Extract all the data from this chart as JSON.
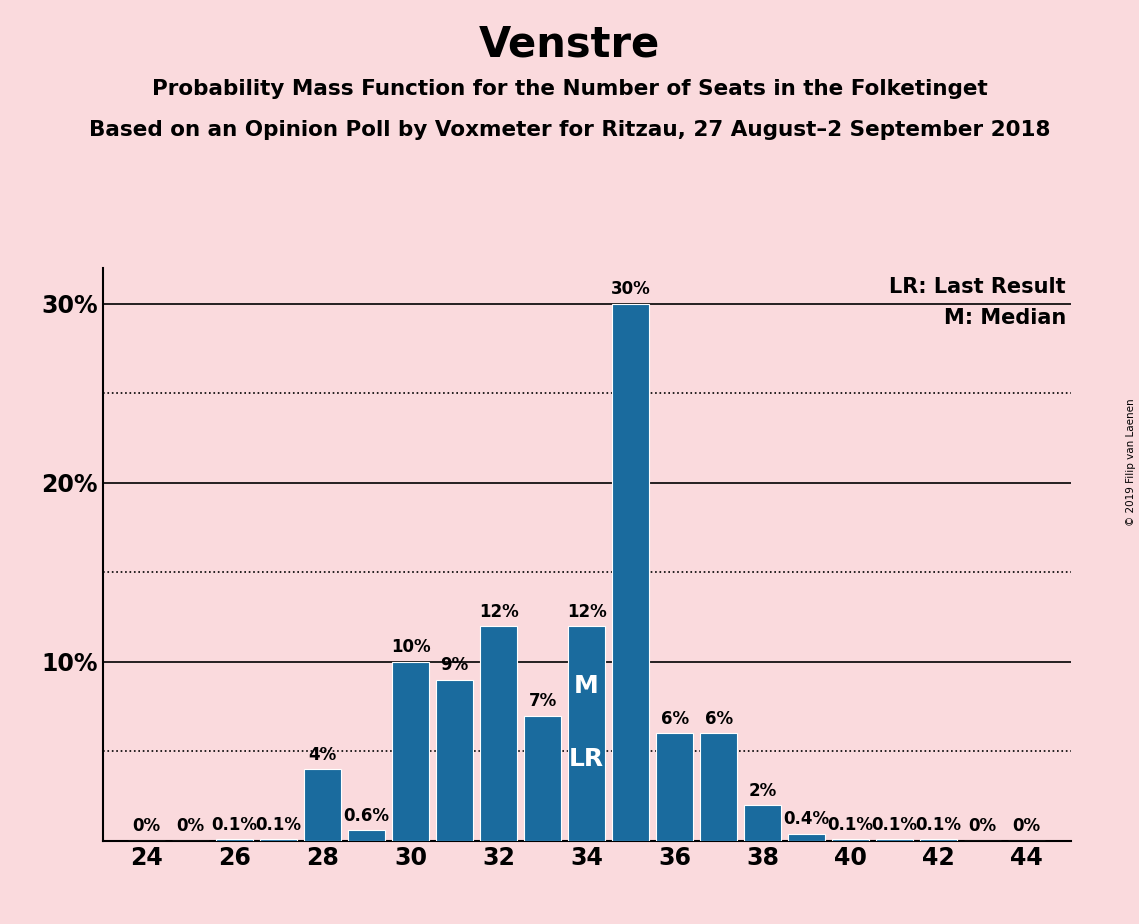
{
  "title": "Venstre",
  "subtitle1": "Probability Mass Function for the Number of Seats in the Folketinget",
  "subtitle2": "Based on an Opinion Poll by Voxmeter for Ritzau, 27 August–2 September 2018",
  "copyright": "© 2019 Filip van Laenen",
  "legend_lr": "LR: Last Result",
  "legend_m": "M: Median",
  "seats": [
    24,
    25,
    26,
    27,
    28,
    29,
    30,
    31,
    32,
    33,
    34,
    35,
    36,
    37,
    38,
    39,
    40,
    41,
    42,
    43,
    44
  ],
  "probabilities": [
    0.0,
    0.0,
    0.1,
    0.1,
    4.0,
    0.6,
    10.0,
    9.0,
    12.0,
    7.0,
    12.0,
    30.0,
    6.0,
    6.0,
    2.0,
    0.4,
    0.1,
    0.1,
    0.1,
    0.0,
    0.0
  ],
  "bar_color": "#1a6b9e",
  "bg_color": "#fadadd",
  "median_seat": 34,
  "lr_seat": 34,
  "xlim": [
    23,
    45
  ],
  "ylim": [
    0,
    32
  ],
  "xticks": [
    24,
    26,
    28,
    30,
    32,
    34,
    36,
    38,
    40,
    42,
    44
  ],
  "solid_yticks": [
    10,
    20,
    30
  ],
  "dotted_yticks": [
    5,
    15,
    25
  ],
  "bar_width": 0.85,
  "label_fontsize": 12,
  "title_fontsize": 30,
  "subtitle_fontsize": 15.5,
  "tick_fontsize": 17,
  "legend_fontsize": 15,
  "copyright_fontsize": 7.5,
  "ml_fontsize": 18
}
